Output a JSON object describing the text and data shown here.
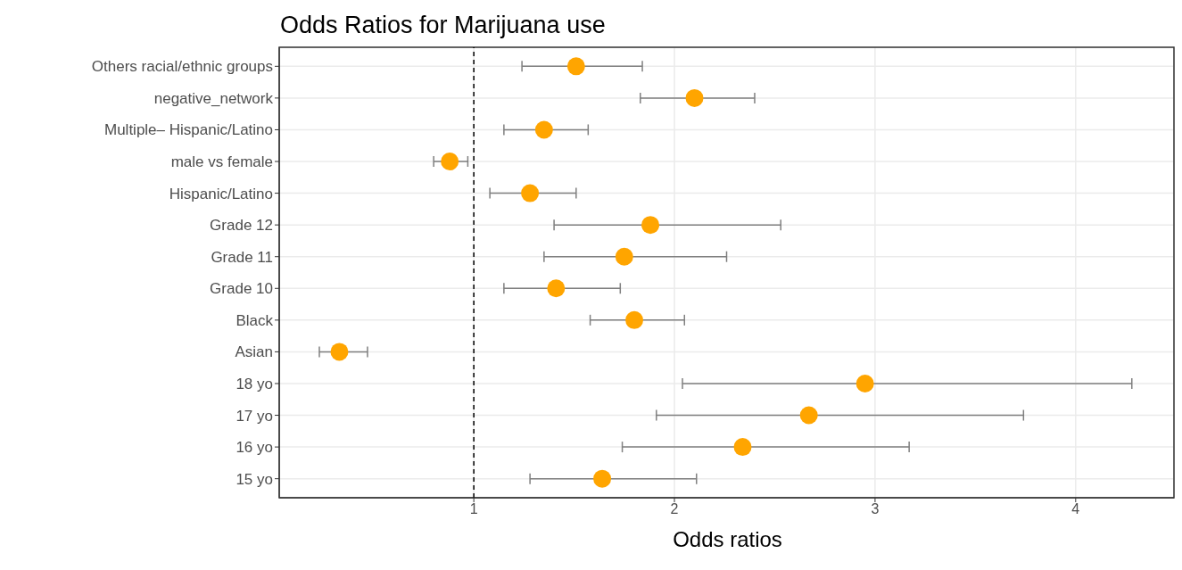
{
  "chart_data": {
    "type": "scatter",
    "title": "Odds Ratios for Marijuana use",
    "xlabel": "Odds ratios",
    "orientation": "horizontal",
    "categories": [
      "Others racial/ethnic groups",
      "negative_network",
      "Multiple– Hispanic/Latino",
      "male vs female",
      "Hispanic/Latino",
      "Grade 12",
      "Grade 11",
      "Grade 10",
      "Black",
      "Asian",
      "18 yo",
      "17 yo",
      "16 yo",
      "15 yo"
    ],
    "series": [
      {
        "color": "#ffa500",
        "values": [
          1.51,
          2.1,
          1.35,
          0.88,
          1.28,
          1.88,
          1.75,
          1.41,
          1.8,
          0.33,
          2.95,
          2.67,
          2.34,
          1.64
        ],
        "errors": [
          [
            1.24,
            1.84
          ],
          [
            1.83,
            2.4
          ],
          [
            1.15,
            1.57
          ],
          [
            0.8,
            0.97
          ],
          [
            1.08,
            1.51
          ],
          [
            1.4,
            2.53
          ],
          [
            1.35,
            2.26
          ],
          [
            1.15,
            1.73
          ],
          [
            1.58,
            2.05
          ],
          [
            0.23,
            0.47
          ],
          [
            2.04,
            4.28
          ],
          [
            1.91,
            3.74
          ],
          [
            1.74,
            3.17
          ],
          [
            1.28,
            2.11
          ]
        ]
      }
    ],
    "xlim": [
      0.03,
      4.49
    ],
    "xticks": [
      1,
      2,
      3,
      4
    ],
    "ref_lines": [
      {
        "axis": "x",
        "value": 1,
        "color": "#000000",
        "line_style": "dashed"
      }
    ],
    "grid": true,
    "marker": "circle"
  }
}
